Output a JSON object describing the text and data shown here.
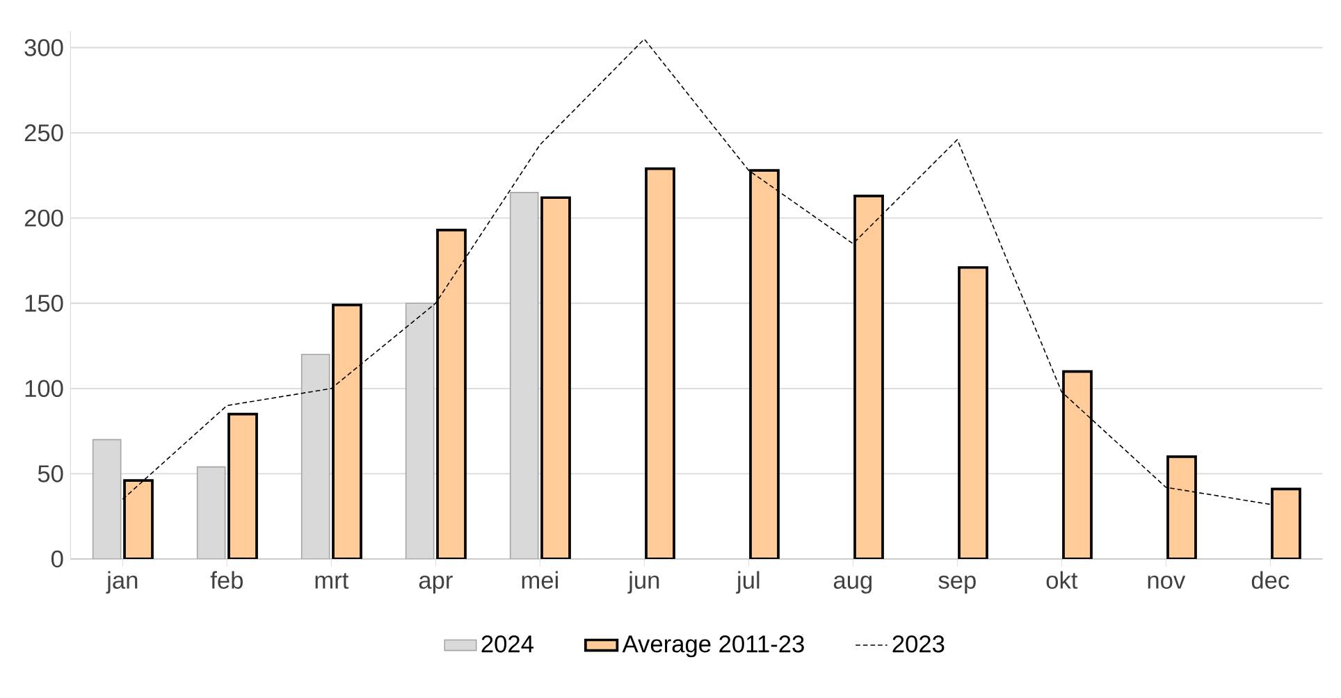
{
  "chart_data": {
    "type": "bar",
    "categories": [
      "jan",
      "feb",
      "mrt",
      "apr",
      "mei",
      "jun",
      "jul",
      "aug",
      "sep",
      "okt",
      "nov",
      "dec"
    ],
    "series": [
      {
        "name": "2024",
        "color": "#d9d9d9",
        "values": [
          70,
          54,
          120,
          150,
          215,
          null,
          null,
          null,
          null,
          null,
          null,
          null
        ]
      },
      {
        "name": "Average 2011-23",
        "color": "#ffcc99",
        "values": [
          46,
          85,
          149,
          193,
          212,
          229,
          228,
          213,
          171,
          110,
          60,
          41
        ]
      },
      {
        "name": "2023",
        "type": "line",
        "color": "#000000",
        "line_style": "dashed",
        "values": [
          35,
          90,
          100,
          150,
          243,
          305,
          228,
          185,
          246,
          98,
          42,
          32
        ]
      }
    ],
    "ylim": [
      0,
      310
    ],
    "yticks": [
      0,
      50,
      100,
      150,
      200,
      250,
      300
    ],
    "grid": "y",
    "legend": "bottom"
  }
}
